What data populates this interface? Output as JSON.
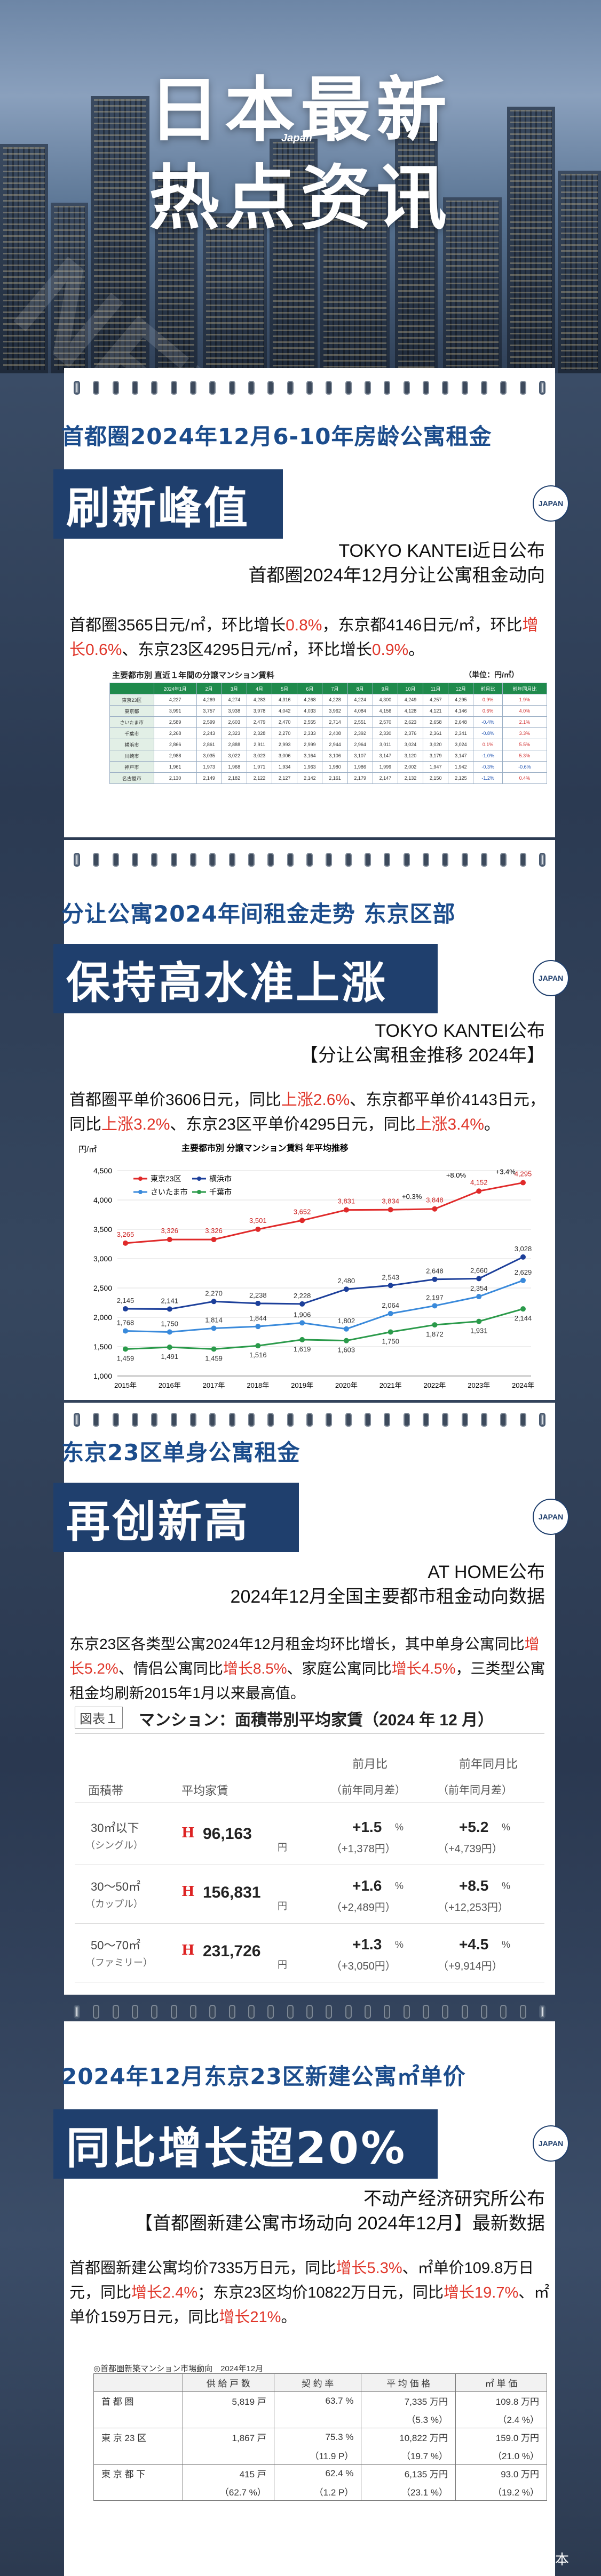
{
  "hero": {
    "line1": "日本最新",
    "line2": "热点资讯",
    "japan": "Japan",
    "news": "NEWS"
  },
  "badge": "JAPAN",
  "s1": {
    "subtitle": "首都圈2024年12月6-10年房龄公寓租金",
    "banner": "刷新峰值",
    "source1": "TOKYO KANTEI近日公布",
    "source2": "首都圈2024年12月分让公寓租金动向",
    "p_a": "首都圈3565日元/㎡，环比增长",
    "p_b": "0.8%",
    "p_c": "，东京都4146日元/㎡，环比",
    "p_d": "增长0.6%",
    "p_e": "、东京23区4295日元/㎡，环比增长",
    "p_f": "0.9%",
    "p_g": "。",
    "table_title": "主要都市別 直近１年間の分譲マンション賃料",
    "table_unit": "（単位：円/㎡）",
    "headers": [
      "",
      "2024年1月",
      "2月",
      "3月",
      "4月",
      "5月",
      "6月",
      "7月",
      "8月",
      "9月",
      "10月",
      "11月",
      "12月",
      "前月比",
      "前年同月比"
    ],
    "rows": [
      [
        "東京23区",
        "4,227",
        "4,269",
        "4,274",
        "4,283",
        "4,316",
        "4,268",
        "4,228",
        "4,224",
        "4,300",
        "4,249",
        "4,257",
        "4,295",
        "0.9%",
        "1.9%"
      ],
      [
        "東京都",
        "3,991",
        "3,757",
        "3,938",
        "3,978",
        "4,042",
        "4,033",
        "3,962",
        "4,084",
        "4,156",
        "4,128",
        "4,121",
        "4,146",
        "0.6%",
        "4.0%"
      ],
      [
        "さいたま市",
        "2,589",
        "2,599",
        "2,603",
        "2,479",
        "2,470",
        "2,555",
        "2,714",
        "2,551",
        "2,570",
        "2,623",
        "2,658",
        "2,648",
        "-0.4%",
        "2.1%"
      ],
      [
        "千葉市",
        "2,268",
        "2,243",
        "2,323",
        "2,328",
        "2,270",
        "2,333",
        "2,408",
        "2,392",
        "2,330",
        "2,376",
        "2,361",
        "2,341",
        "-0.8%",
        "3.3%"
      ],
      [
        "横浜市",
        "2,866",
        "2,861",
        "2,888",
        "2,911",
        "2,993",
        "2,999",
        "2,944",
        "2,964",
        "3,011",
        "3,024",
        "3,020",
        "3,024",
        "0.1%",
        "5.5%"
      ],
      [
        "川崎市",
        "2,988",
        "3,035",
        "3,022",
        "3,023",
        "3,006",
        "3,164",
        "3,106",
        "3,107",
        "3,147",
        "3,120",
        "3,179",
        "3,147",
        "-1.0%",
        "5.3%"
      ],
      [
        "神戸市",
        "1,961",
        "1,973",
        "1,968",
        "1,971",
        "1,934",
        "1,963",
        "1,980",
        "1,986",
        "1,999",
        "2,002",
        "1,947",
        "1,942",
        "-0.3%",
        "-0.6%"
      ],
      [
        "名古屋市",
        "2,130",
        "2,149",
        "2,182",
        "2,122",
        "2,127",
        "2,142",
        "2,161",
        "2,179",
        "2,147",
        "2,132",
        "2,150",
        "2,125",
        "-1.2%",
        "0.4%"
      ]
    ]
  },
  "s2": {
    "subtitle": "分让公寓2024年间租金走势 东京区部",
    "banner": "保持高水准上涨",
    "source1": "TOKYO KANTEI公布",
    "source2": "【分让公寓租金推移 2024年】",
    "p_a": "首都圈平单价3606日元，同比",
    "p_b": "上涨2.6%",
    "p_c": "、东京都平单价4143日元",
    "p_d": "，同比",
    "p_e": "上涨3.2%",
    "p_f": "、东京23区平单价4295日元，同比",
    "p_g": "上涨3.4%",
    "p_h": "。"
  },
  "chart_data": {
    "type": "line",
    "title": "主要都市別 分譲マンション賃料 年平均推移",
    "ylabel": "円/㎡",
    "ylim": [
      1000,
      4500
    ],
    "categories": [
      "2015年",
      "2016年",
      "2017年",
      "2018年",
      "2019年",
      "2020年",
      "2021年",
      "2022年",
      "2023年",
      "2024年"
    ],
    "series": [
      {
        "name": "東京23区",
        "color": "#e02a2a",
        "values": [
          3265,
          3326,
          3326,
          3501,
          3652,
          3831,
          3834,
          3848,
          4152,
          4295
        ]
      },
      {
        "name": "横浜市",
        "color": "#1c3f9a",
        "values": [
          2145,
          2141,
          2270,
          2238,
          2228,
          2480,
          2543,
          2648,
          2660,
          3028
        ]
      },
      {
        "name": "さいたま市",
        "color": "#3a8adb",
        "values": [
          1768,
          1750,
          1814,
          1844,
          1906,
          1802,
          2064,
          2197,
          2354,
          2629
        ]
      },
      {
        "name": "千葉市",
        "color": "#2a9a4a",
        "values": [
          1459,
          1491,
          1459,
          1516,
          1619,
          1603,
          1750,
          1872,
          1931,
          2144
        ]
      }
    ],
    "annotations": [
      "+0.3%",
      "+8.0%",
      "+3.4%"
    ],
    "yticks": [
      "4,500",
      "4,000",
      "3,500",
      "3,000",
      "2,500",
      "2,000",
      "1,500",
      "1,000"
    ],
    "labels": {
      "s0": [
        "3,265",
        "3,326",
        "3,326",
        "3,501",
        "3,652",
        "3,831",
        "3,834",
        "3,848",
        "4,152",
        "4,295"
      ],
      "s1": [
        "2,145",
        "2,141",
        "2,270",
        "2,238",
        "2,228",
        "2,480",
        "2,543",
        "2,648",
        "2,660",
        "3,028"
      ],
      "s2": [
        "1,768",
        "1,750",
        "1,814",
        "1,844",
        "1,906",
        "1,802",
        "2,064",
        "2,197",
        "2,354",
        "2,629"
      ],
      "s3": [
        "1,459",
        "1,491",
        "1,459",
        "1,516",
        "1,619",
        "1,603",
        "1,750",
        "1,872",
        "1,931",
        "2,144"
      ]
    }
  },
  "s3": {
    "subtitle": "东京23区单身公寓租金",
    "banner": "再创新高",
    "source1": "AT HOME公布",
    "source2": "2024年12月全国主要都市租金动向数据",
    "p_a": "东京23区各类型公寓2024年12月租金均环比增长，其中单身公寓",
    "p_b": "同比",
    "p_c": "增长5.2%",
    "p_d": "、情侣公寓同比",
    "p_e": "增长8.5%",
    "p_f": "、家庭公寓同比",
    "p_g": "增长4.5%",
    "p_h": "，三类型公寓租金均刷新2015年1月以来最高值。",
    "fig": "図表１",
    "fig_title": "マンション：面積帯別平均家賃（2024 年 12 月）",
    "h_area": "面積帯",
    "h_rent": "平均家賃",
    "h_mom": "前月比",
    "h_yoy": "前年同月比",
    "h_mom2": "（前年同月差）",
    "h_yoy2": "（前年同月差）",
    "rows": [
      {
        "area": "30㎡以下",
        "type": "（シングル）",
        "rent": "96,163",
        "unit": "円",
        "mom": "+1.5",
        "mom2": "（+1,378円）",
        "yoy": "+5.2",
        "yoy2": "（+4,739円）"
      },
      {
        "area": "30～50㎡",
        "type": "（カップル）",
        "rent": "156,831",
        "unit": "円",
        "mom": "+1.6",
        "mom2": "（+2,489円）",
        "yoy": "+8.5",
        "yoy2": "（+12,253円）"
      },
      {
        "area": "50～70㎡",
        "type": "（ファミリー）",
        "rent": "231,726",
        "unit": "円",
        "mom": "+1.3",
        "mom2": "（+3,050円）",
        "yoy": "+4.5",
        "yoy2": "（+9,914円）"
      }
    ],
    "pct": "%"
  },
  "s4": {
    "subtitle": "2024年12月东京23区新建公寓㎡单价",
    "banner": "同比增长超20%",
    "source1": "不动产经济研究所公布",
    "source2": "【首都圈新建公寓市场动向 2024年12月】最新数据",
    "p_a": "首都圈新建公寓均价7335万日元，同比",
    "p_b": "增长5.3%",
    "p_c": "、㎡单价109.8",
    "p_d": "万日元，同比",
    "p_e": "增长2.4%",
    "p_f": "；东京23区均价10822万日元，同比",
    "p_g": "增长",
    "p_h": "19.7%",
    "p_i": "、㎡单价159万日元，同比",
    "p_j": "增长21%",
    "p_k": "。",
    "tbl_caption": "◎首都圏新築マンション市場動向　2024年12月",
    "headers": [
      "",
      "供 給 戸 数",
      "契 約 率",
      "平 均 価 格",
      "㎡ 単 価"
    ],
    "rows": [
      [
        "首 都 圏",
        "5,819 戸",
        "63.7 %",
        "7,335 万円",
        "109.8 万円"
      ],
      [
        "",
        "",
        "",
        "（5.3 %）",
        "（2.4 %）"
      ],
      [
        "東 京 23 区",
        "1,867 戸",
        "75.3 %",
        "10,822 万円",
        "159.0 万円"
      ],
      [
        "",
        "",
        "（11.9 P）",
        "（19.7 %）",
        "（21.0 %）"
      ],
      [
        "東 京 都 下",
        "415 戸",
        "62.4 %",
        "6,135 万円",
        "93.0 万円"
      ],
      [
        "",
        "（62.7 %）",
        "（1.2 P）",
        "（23.1 %）",
        "（19.2 %）"
      ]
    ]
  },
  "footer": "@船长在日本"
}
